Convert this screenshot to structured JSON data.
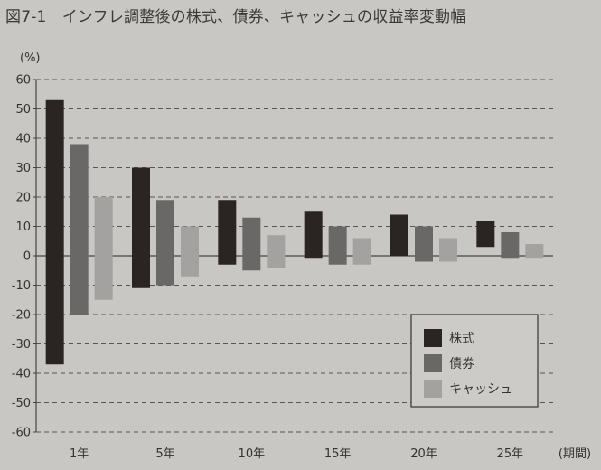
{
  "figure": {
    "title": "図7-1　インフレ調整後の株式、債券、キャッシュの収益率変動幅"
  },
  "chart_data": {
    "type": "bar",
    "subtype": "floating-range",
    "ylabel": "(%)",
    "xlabel": "(期間)",
    "ylim": [
      -60,
      60
    ],
    "yticks": [
      60,
      50,
      40,
      30,
      20,
      10,
      0,
      -10,
      -20,
      -30,
      -40,
      -50,
      -60
    ],
    "grid": "horizontal-dashed",
    "legend_position": "bottom-right",
    "categories": [
      "1年",
      "5年",
      "10年",
      "15年",
      "20年",
      "25年"
    ],
    "series": [
      {
        "name": "株式",
        "color": "#2a2422",
        "ranges": [
          [
            -37,
            53
          ],
          [
            -11,
            30
          ],
          [
            -3,
            19
          ],
          [
            -1,
            15
          ],
          [
            0,
            14
          ],
          [
            3,
            12
          ]
        ]
      },
      {
        "name": "債券",
        "color": "#6a6867",
        "ranges": [
          [
            -20,
            38
          ],
          [
            -10,
            19
          ],
          [
            -5,
            13
          ],
          [
            -3,
            10
          ],
          [
            -2,
            10
          ],
          [
            -1,
            8
          ]
        ]
      },
      {
        "name": "キャッシュ",
        "color": "#a3a2a1",
        "ranges": [
          [
            -15,
            20
          ],
          [
            -7,
            10
          ],
          [
            -4,
            7
          ],
          [
            -3,
            6
          ],
          [
            -2,
            6
          ],
          [
            -1,
            4
          ]
        ]
      }
    ]
  }
}
